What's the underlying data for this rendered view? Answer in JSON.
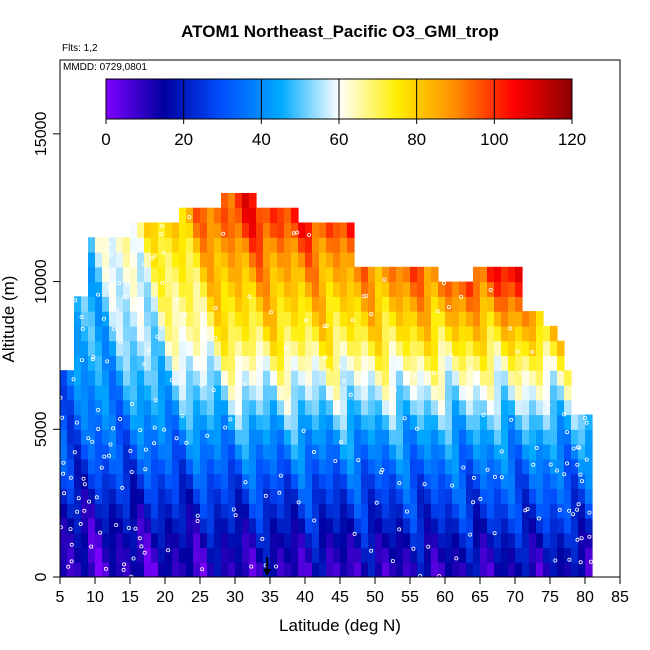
{
  "header": {
    "flights_label": "Flts: 1,2",
    "mmdd_label": "MMDD: 0729,0801"
  },
  "chart_data": {
    "type": "heatmap",
    "title": "ATOM1 Northeast_Pacific O3_GMI_trop",
    "xlabel": "Latitude (deg N)",
    "ylabel": "Altitude (m)",
    "xlim": [
      5,
      85
    ],
    "ylim": [
      0,
      17500
    ],
    "x_ticks": [
      "5",
      "10",
      "15",
      "20",
      "25",
      "30",
      "35",
      "40",
      "45",
      "50",
      "55",
      "60",
      "65",
      "70",
      "75",
      "80",
      "85"
    ],
    "y_ticks": [
      "0",
      "5000",
      "10000",
      "15000"
    ],
    "colorbar": {
      "range": [
        0,
        120
      ],
      "ticks": [
        "0",
        "20",
        "40",
        "60",
        "80",
        "100",
        "120"
      ],
      "colors": [
        "#7f00ff",
        "#0000a0",
        "#0050ff",
        "#00aaff",
        "#ffffff",
        "#ffee00",
        "#ff8c00",
        "#ff0000",
        "#8b0000"
      ]
    },
    "lat_columns": [
      5,
      6,
      7,
      8,
      9,
      10,
      11,
      12,
      13,
      14,
      15,
      16,
      17,
      18,
      19,
      20,
      21,
      22,
      23,
      24,
      25,
      26,
      27,
      28,
      29,
      30,
      31,
      32,
      33,
      34,
      35,
      36,
      37,
      38,
      39,
      40,
      41,
      42,
      43,
      44,
      45,
      46,
      47,
      48,
      49,
      50,
      51,
      52,
      53,
      54,
      55,
      56,
      57,
      58,
      59,
      60,
      61,
      62,
      63,
      64,
      65,
      66,
      67,
      68,
      69,
      70,
      71,
      72,
      73,
      74,
      75,
      76,
      77,
      78,
      79,
      80
    ],
    "column_top_altitude_m": [
      6900,
      6900,
      9500,
      9500,
      11400,
      11400,
      11400,
      11400,
      11400,
      11400,
      12000,
      12000,
      12000,
      12000,
      12000,
      12000,
      12000,
      12300,
      12300,
      12300,
      12300,
      12300,
      12300,
      12800,
      12800,
      12800,
      12800,
      12800,
      12300,
      12300,
      12300,
      12300,
      12300,
      12300,
      12000,
      12000,
      12000,
      12000,
      12000,
      11700,
      11700,
      11700,
      10300,
      10300,
      10300,
      10300,
      10300,
      10300,
      10300,
      10300,
      10300,
      10300,
      10300,
      10300,
      10000,
      10000,
      10000,
      10000,
      10000,
      10300,
      10300,
      10300,
      10300,
      10300,
      10300,
      10300,
      9000,
      8800,
      8800,
      8400,
      8400,
      8000,
      7000,
      5500,
      5500,
      5500
    ],
    "bin_height_m": 500,
    "profile_altitudes_m": [
      0,
      1000,
      2000,
      3000,
      4000,
      5000,
      6000,
      7000,
      8000,
      9000,
      10000,
      11000,
      12000
    ],
    "profile_o3_south_ppbv": [
      8,
      10,
      14,
      22,
      28,
      32,
      34,
      38,
      40,
      42,
      44,
      46,
      50
    ],
    "profile_o3_mid_ppbv": [
      10,
      14,
      22,
      28,
      36,
      44,
      54,
      62,
      72,
      78,
      84,
      90,
      100
    ],
    "profile_o3_north_ppbv": [
      12,
      18,
      26,
      32,
      38,
      46,
      56,
      66,
      78,
      90,
      104,
      112,
      116
    ],
    "marker_latitude": 34.6,
    "legend": "top (horizontal colorbar)",
    "grid": false
  }
}
